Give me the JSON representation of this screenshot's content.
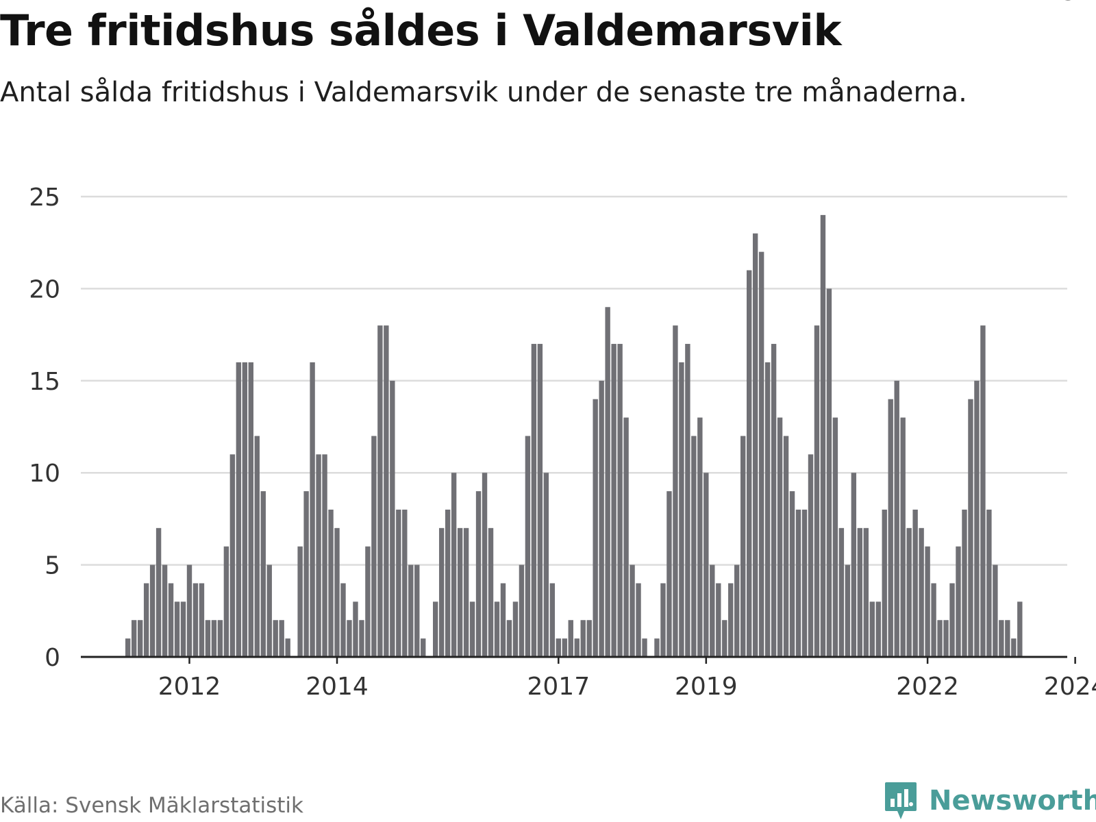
{
  "header": {
    "title": "Tre fritidshus såldes i Valdemarsvik",
    "subtitle": "Antal sålda fritidshus i Valdemarsvik under de senaste tre månaderna."
  },
  "footer": {
    "source": "Källa: Svensk Mäklarstatistik",
    "brand_name": "Newsworthy"
  },
  "colors": {
    "bar": "#707075",
    "highlight": "#1aa39a",
    "grid": "#dcdcdc",
    "axis": "#222222",
    "brand": "#4a9d99"
  },
  "chart_data": {
    "type": "bar",
    "title": "Tre fritidshus såldes i Valdemarsvik",
    "subtitle": "Antal sålda fritidshus i Valdemarsvik under de senaste tre månaderna.",
    "xlabel": "",
    "ylabel": "",
    "ylim": [
      0,
      25
    ],
    "yticks": [
      0,
      5,
      10,
      15,
      20,
      25
    ],
    "grid": true,
    "xtick_labels": [
      "2012",
      "2014",
      "2017",
      "2019",
      "2022",
      "2024"
    ],
    "xtick_positions": [
      10,
      34,
      70,
      94,
      130,
      154
    ],
    "values": [
      1,
      2,
      2,
      4,
      5,
      7,
      5,
      4,
      3,
      3,
      5,
      4,
      4,
      2,
      2,
      2,
      6,
      11,
      16,
      16,
      16,
      12,
      9,
      5,
      2,
      2,
      1,
      0,
      6,
      9,
      16,
      11,
      11,
      8,
      7,
      4,
      2,
      3,
      2,
      6,
      12,
      18,
      18,
      15,
      8,
      8,
      5,
      5,
      1,
      0,
      3,
      7,
      8,
      10,
      7,
      7,
      3,
      9,
      10,
      7,
      3,
      4,
      2,
      3,
      5,
      12,
      17,
      17,
      10,
      4,
      1,
      1,
      2,
      1,
      2,
      2,
      14,
      15,
      19,
      17,
      17,
      13,
      5,
      4,
      1,
      0,
      1,
      4,
      9,
      18,
      16,
      17,
      12,
      13,
      10,
      5,
      4,
      2,
      4,
      5,
      12,
      21,
      23,
      22,
      16,
      17,
      13,
      12,
      9,
      8,
      8,
      11,
      18,
      24,
      20,
      13,
      7,
      5,
      10,
      7,
      7,
      3,
      3,
      8,
      14,
      15,
      13,
      7,
      8,
      7,
      6,
      4,
      2,
      2,
      4,
      6,
      8,
      14,
      15,
      18,
      8,
      5,
      2,
      2,
      1,
      3
    ],
    "highlight_index": 153,
    "highlight_label": "3"
  }
}
